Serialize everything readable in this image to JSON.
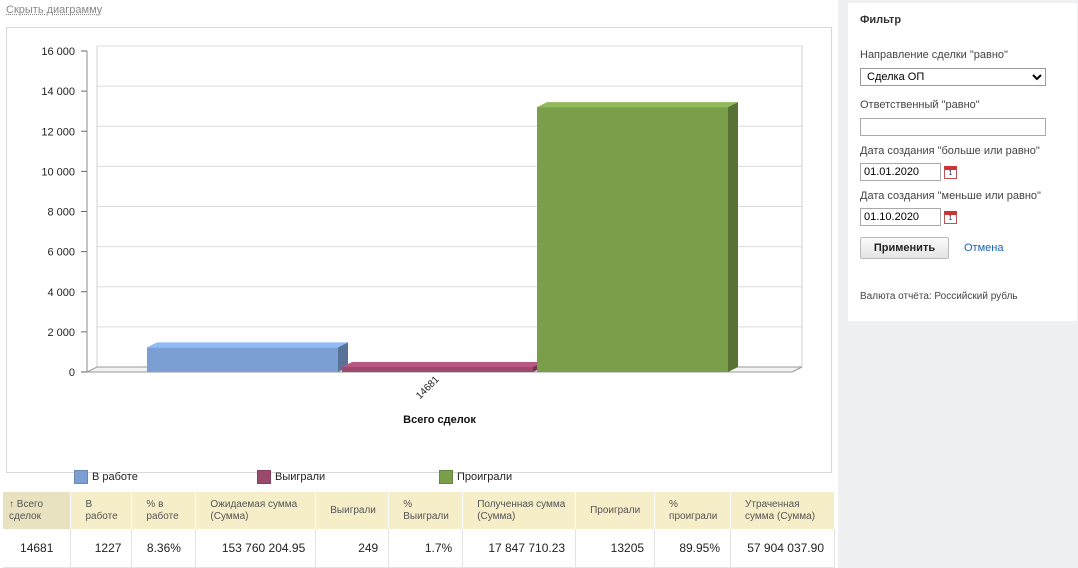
{
  "toggle_label": "Скрыть диаграмму",
  "chart_data": {
    "type": "bar",
    "categories": [
      "14681"
    ],
    "xlabel": "Всего сделок",
    "ylim": [
      0,
      16000
    ],
    "yticks": [
      "0",
      "2 000",
      "4 000",
      "6 000",
      "8 000",
      "10 000",
      "12 000",
      "14 000",
      "16 000"
    ],
    "ytick_values": [
      0,
      2000,
      4000,
      6000,
      8000,
      10000,
      12000,
      14000,
      16000
    ],
    "grid": true,
    "legend_position": "bottom",
    "series": [
      {
        "name": "В работе",
        "values": [
          1227
        ],
        "color": "#7b9fd2"
      },
      {
        "name": "Выиграли",
        "values": [
          249
        ],
        "color": "#9b4a6e"
      },
      {
        "name": "Проиграли",
        "values": [
          13205
        ],
        "color": "#7a9e4a"
      }
    ]
  },
  "table": {
    "headers": [
      "Всего сделок",
      "В работе",
      "% в работе",
      "Ожидаемая сумма (Сумма)",
      "Выиграли",
      "% Выиграли",
      "Полученная сумма (Сумма)",
      "Проиграли",
      "% проиграли",
      "Утраченная сумма (Сумма)"
    ],
    "sort_icon": "↑",
    "row": [
      "14681",
      "1227",
      "8.36%",
      "153 760 204.95",
      "249",
      "1.7%",
      "17 847 710.23",
      "13205",
      "89.95%",
      "57 904 037.90"
    ]
  },
  "filter": {
    "title": "Фильтр",
    "direction_label": "Направление сделки \"равно\"",
    "direction_value": "Сделка ОП",
    "responsible_label": "Ответственный \"равно\"",
    "responsible_value": "",
    "date_from_label": "Дата создания \"больше или равно\"",
    "date_from_value": "01.01.2020",
    "date_to_label": "Дата создания \"меньше или равно\"",
    "date_to_value": "01.10.2020",
    "apply_label": "Применить",
    "cancel_label": "Отмена",
    "currency_text": "Валюта отчёта: Российский рубль"
  }
}
